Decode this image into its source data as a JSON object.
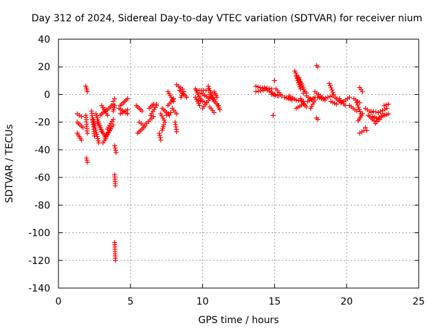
{
  "chart_data": {
    "type": "scatter",
    "title": "Day 312 of 2024, Sidereal Day-to-day VTEC variation (SDTVAR) for receiver nium",
    "xlabel": "GPS time / hours",
    "ylabel": "SDTVAR / TECUs",
    "xlim": [
      0,
      25
    ],
    "ylim": [
      -140,
      40
    ],
    "xticks": [
      0,
      5,
      10,
      15,
      20,
      25
    ],
    "yticks": [
      -140,
      -120,
      -100,
      -80,
      -60,
      -40,
      -20,
      0,
      20,
      40
    ],
    "grid": true,
    "marker": "+",
    "color": "#ff0000",
    "segments": [
      {
        "x0": 1.3,
        "y0": -14,
        "x1": 1.6,
        "y1": -16
      },
      {
        "x0": 1.3,
        "y0": -20,
        "x1": 1.7,
        "y1": -24
      },
      {
        "x0": 1.3,
        "y0": -28,
        "x1": 1.6,
        "y1": -33
      },
      {
        "x0": 1.9,
        "y0": 6,
        "x1": 2.0,
        "y1": 2
      },
      {
        "x0": 1.9,
        "y0": -15,
        "x1": 2.0,
        "y1": -28
      },
      {
        "x0": 1.95,
        "y0": -46,
        "x1": 2.0,
        "y1": -49
      },
      {
        "x0": 2.3,
        "y0": -12,
        "x1": 2.5,
        "y1": -30
      },
      {
        "x0": 2.4,
        "y0": -18,
        "x1": 2.8,
        "y1": -35
      },
      {
        "x0": 2.6,
        "y0": -14,
        "x1": 3.0,
        "y1": -27
      },
      {
        "x0": 2.7,
        "y0": -20,
        "x1": 3.3,
        "y1": -32
      },
      {
        "x0": 2.9,
        "y0": -15,
        "x1": 3.3,
        "y1": -11
      },
      {
        "x0": 3.0,
        "y0": -8,
        "x1": 3.4,
        "y1": -15
      },
      {
        "x0": 3.1,
        "y0": -35,
        "x1": 3.6,
        "y1": -25
      },
      {
        "x0": 3.3,
        "y0": -30,
        "x1": 3.8,
        "y1": -22
      },
      {
        "x0": 3.4,
        "y0": -25,
        "x1": 3.8,
        "y1": -18
      },
      {
        "x0": 3.3,
        "y0": -12,
        "x1": 3.8,
        "y1": -7
      },
      {
        "x0": 3.8,
        "y0": -5,
        "x1": 3.9,
        "y1": -3
      },
      {
        "x0": 3.8,
        "y0": -12,
        "x1": 3.9,
        "y1": -8
      },
      {
        "x0": 3.9,
        "y0": -37,
        "x1": 4.0,
        "y1": -42
      },
      {
        "x0": 3.9,
        "y0": -58,
        "x1": 3.95,
        "y1": -66
      },
      {
        "x0": 3.9,
        "y0": -107,
        "x1": 3.95,
        "y1": -120
      },
      {
        "x0": 4.2,
        "y0": -10,
        "x1": 4.8,
        "y1": -14
      },
      {
        "x0": 4.3,
        "y0": -8,
        "x1": 4.8,
        "y1": -3
      },
      {
        "x0": 4.3,
        "y0": -14,
        "x1": 4.8,
        "y1": -11
      },
      {
        "x0": 5.4,
        "y0": -8,
        "x1": 5.8,
        "y1": -12
      },
      {
        "x0": 5.5,
        "y0": -28,
        "x1": 5.9,
        "y1": -24
      },
      {
        "x0": 5.6,
        "y0": -20,
        "x1": 6.0,
        "y1": -23
      },
      {
        "x0": 6.0,
        "y0": -22,
        "x1": 6.6,
        "y1": -16
      },
      {
        "x0": 6.3,
        "y0": -10,
        "x1": 6.6,
        "y1": -7
      },
      {
        "x0": 6.4,
        "y0": -15,
        "x1": 6.8,
        "y1": -8
      },
      {
        "x0": 6.6,
        "y0": -7,
        "x1": 6.8,
        "y1": -7
      },
      {
        "x0": 7.0,
        "y0": -28,
        "x1": 7.1,
        "y1": -33
      },
      {
        "x0": 7.1,
        "y0": -14,
        "x1": 7.4,
        "y1": -20
      },
      {
        "x0": 7.2,
        "y0": -26,
        "x1": 7.3,
        "y1": -22
      },
      {
        "x0": 7.2,
        "y0": -10,
        "x1": 7.7,
        "y1": -15
      },
      {
        "x0": 7.5,
        "y0": -15,
        "x1": 7.8,
        "y1": -13
      },
      {
        "x0": 7.6,
        "y0": -8,
        "x1": 8.0,
        "y1": -3
      },
      {
        "x0": 7.6,
        "y0": 2,
        "x1": 8.0,
        "y1": -5
      },
      {
        "x0": 7.9,
        "y0": -10,
        "x1": 8.2,
        "y1": -14
      },
      {
        "x0": 8.1,
        "y0": -20,
        "x1": 8.2,
        "y1": -27
      },
      {
        "x0": 8.2,
        "y0": 7,
        "x1": 8.6,
        "y1": 4
      },
      {
        "x0": 8.4,
        "y0": 3,
        "x1": 8.9,
        "y1": -2
      },
      {
        "x0": 8.5,
        "y0": -2,
        "x1": 8.7,
        "y1": 2
      },
      {
        "x0": 9.5,
        "y0": 4,
        "x1": 9.9,
        "y1": -4
      },
      {
        "x0": 9.5,
        "y0": -2,
        "x1": 9.8,
        "y1": -8
      },
      {
        "x0": 9.6,
        "y0": 3,
        "x1": 10.4,
        "y1": 3
      },
      {
        "x0": 9.7,
        "y0": -4,
        "x1": 10.3,
        "y1": -6
      },
      {
        "x0": 9.9,
        "y0": 1,
        "x1": 10.5,
        "y1": -3
      },
      {
        "x0": 10.0,
        "y0": -10,
        "x1": 10.5,
        "y1": -3
      },
      {
        "x0": 10.4,
        "y0": 6,
        "x1": 10.8,
        "y1": -5
      },
      {
        "x0": 10.5,
        "y0": 0,
        "x1": 11.1,
        "y1": -8
      },
      {
        "x0": 10.5,
        "y0": -9,
        "x1": 10.8,
        "y1": -13
      },
      {
        "x0": 10.8,
        "y0": 2,
        "x1": 11.0,
        "y1": -2
      },
      {
        "x0": 11.0,
        "y0": -7,
        "x1": 11.2,
        "y1": -11
      },
      {
        "x0": 13.7,
        "y0": 6,
        "x1": 14.3,
        "y1": 4
      },
      {
        "x0": 13.7,
        "y0": 2,
        "x1": 14.2,
        "y1": 3
      },
      {
        "x0": 14.3,
        "y0": 5,
        "x1": 14.8,
        "y1": 4
      },
      {
        "x0": 14.4,
        "y0": 4,
        "x1": 15.0,
        "y1": 0
      },
      {
        "x0": 14.8,
        "y0": 0,
        "x1": 15.2,
        "y1": -1
      },
      {
        "x0": 15.0,
        "y0": 10,
        "x1": 15.0,
        "y1": 10
      },
      {
        "x0": 14.9,
        "y0": -15,
        "x1": 14.9,
        "y1": -15
      },
      {
        "x0": 15.1,
        "y0": 4,
        "x1": 15.4,
        "y1": 0
      },
      {
        "x0": 15.3,
        "y0": -1,
        "x1": 15.5,
        "y1": -1
      },
      {
        "x0": 15.7,
        "y0": -2,
        "x1": 16.2,
        "y1": -4
      },
      {
        "x0": 16.0,
        "y0": -1,
        "x1": 16.5,
        "y1": -4
      },
      {
        "x0": 16.4,
        "y0": 17,
        "x1": 16.8,
        "y1": 8
      },
      {
        "x0": 16.5,
        "y0": 13,
        "x1": 16.8,
        "y1": 4
      },
      {
        "x0": 16.5,
        "y0": -10,
        "x1": 17.0,
        "y1": -7
      },
      {
        "x0": 16.5,
        "y0": -4,
        "x1": 17.0,
        "y1": -5
      },
      {
        "x0": 16.7,
        "y0": 12,
        "x1": 17.1,
        "y1": 2
      },
      {
        "x0": 16.8,
        "y0": -3,
        "x1": 17.2,
        "y1": -9
      },
      {
        "x0": 17.0,
        "y0": 1,
        "x1": 17.2,
        "y1": 1
      },
      {
        "x0": 17.2,
        "y0": -1,
        "x1": 17.6,
        "y1": -4
      },
      {
        "x0": 17.3,
        "y0": -5,
        "x1": 17.8,
        "y1": -2
      },
      {
        "x0": 17.5,
        "y0": -10,
        "x1": 17.8,
        "y1": -4
      },
      {
        "x0": 17.9,
        "y0": 21,
        "x1": 18.0,
        "y1": 20
      },
      {
        "x0": 17.8,
        "y0": 2,
        "x1": 18.3,
        "y1": -2
      },
      {
        "x0": 17.9,
        "y0": -17,
        "x1": 18.0,
        "y1": -18
      },
      {
        "x0": 18.0,
        "y0": -2,
        "x1": 18.5,
        "y1": -4
      },
      {
        "x0": 18.4,
        "y0": -3,
        "x1": 19.0,
        "y1": -1
      },
      {
        "x0": 18.8,
        "y0": 8,
        "x1": 19.1,
        "y1": 0
      },
      {
        "x0": 18.9,
        "y0": -5,
        "x1": 19.3,
        "y1": -7
      },
      {
        "x0": 19.2,
        "y0": -2,
        "x1": 19.6,
        "y1": -6
      },
      {
        "x0": 19.5,
        "y0": -3,
        "x1": 19.9,
        "y1": -8
      },
      {
        "x0": 19.8,
        "y0": -5,
        "x1": 20.2,
        "y1": -2
      },
      {
        "x0": 20.2,
        "y0": -8,
        "x1": 20.7,
        "y1": -12
      },
      {
        "x0": 20.5,
        "y0": -3,
        "x1": 20.9,
        "y1": -6
      },
      {
        "x0": 20.7,
        "y0": -6,
        "x1": 21.0,
        "y1": -14
      },
      {
        "x0": 20.8,
        "y0": -19,
        "x1": 21.1,
        "y1": -14
      },
      {
        "x0": 20.9,
        "y0": 5,
        "x1": 21.1,
        "y1": 2
      },
      {
        "x0": 20.9,
        "y0": -28,
        "x1": 21.2,
        "y1": -26
      },
      {
        "x0": 21.3,
        "y0": -10,
        "x1": 21.7,
        "y1": -13
      },
      {
        "x0": 21.3,
        "y0": -24,
        "x1": 21.4,
        "y1": -26
      },
      {
        "x0": 21.5,
        "y0": -15,
        "x1": 21.9,
        "y1": -19
      },
      {
        "x0": 21.7,
        "y0": -12,
        "x1": 22.2,
        "y1": -13
      },
      {
        "x0": 21.8,
        "y0": -16,
        "x1": 22.3,
        "y1": -18
      },
      {
        "x0": 22.0,
        "y0": -21,
        "x1": 22.5,
        "y1": -14
      },
      {
        "x0": 22.2,
        "y0": -13,
        "x1": 22.8,
        "y1": -10
      },
      {
        "x0": 22.4,
        "y0": -16,
        "x1": 22.9,
        "y1": -14
      },
      {
        "x0": 22.6,
        "y0": -8,
        "x1": 22.9,
        "y1": -7
      }
    ]
  }
}
